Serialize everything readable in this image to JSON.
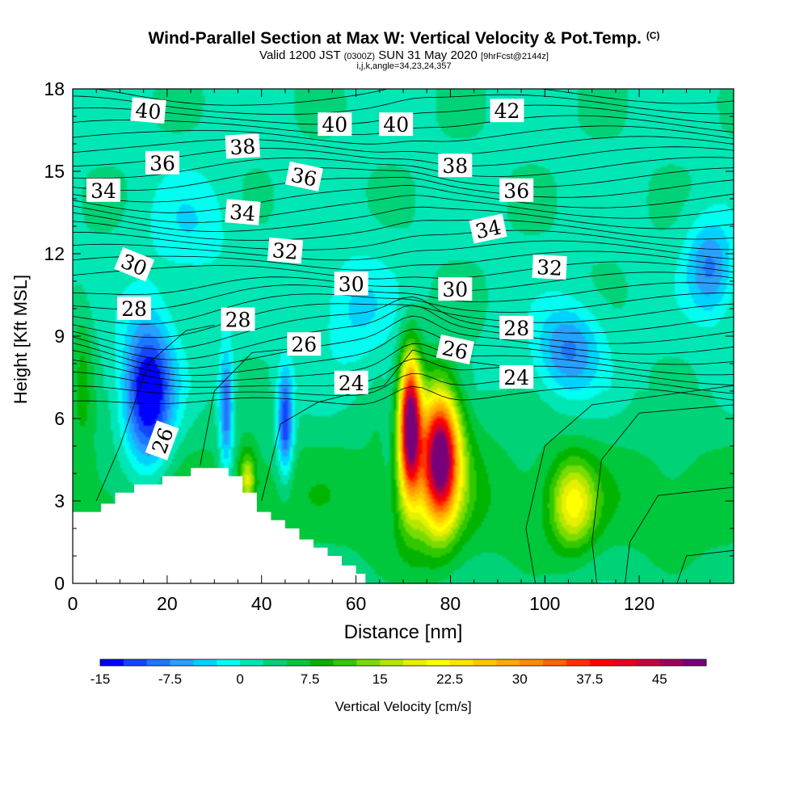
{
  "title": "Wind-Parallel Section at Max W: Vertical Velocity & Pot.Temp.",
  "copyright": "(C)",
  "subtitle_main": "Valid 1200 JST",
  "subtitle_z": "(0300Z)",
  "subtitle_date": "SUN 31 May 2020",
  "subtitle_fcst": "[9hrFcst@2144z]",
  "subtitle2": "i,j,k,angle=34,23,24,357",
  "chart_data": {
    "type": "heatmap",
    "xlabel": "Distance [nm]",
    "ylabel": "Height [Kft MSL]",
    "xlim": [
      0,
      140
    ],
    "ylim": [
      0,
      18
    ],
    "xticks": [
      "0",
      "20",
      "40",
      "60",
      "80",
      "100",
      "120"
    ],
    "yticks": [
      "0",
      "3",
      "6",
      "9",
      "12",
      "15",
      "18"
    ],
    "colorbar": {
      "label": "Vertical Velocity [cm/s]",
      "tick_labels": [
        "-15",
        "-7.5",
        "0",
        "7.5",
        "15",
        "22.5",
        "30",
        "37.5",
        "45"
      ],
      "range": [
        -15,
        47.5
      ],
      "step": 2.5,
      "colors": [
        "#0000ff",
        "#1446ff",
        "#1e78ff",
        "#28a0ff",
        "#00d2ff",
        "#00fff0",
        "#00e6b4",
        "#00d278",
        "#00c83c",
        "#00b400",
        "#32c800",
        "#78dc00",
        "#b4e600",
        "#e6f000",
        "#ffff00",
        "#ffe600",
        "#ffc800",
        "#ffaa00",
        "#ff8c00",
        "#ff6400",
        "#ff3200",
        "#ff0000",
        "#e6001e",
        "#c8003c",
        "#a0005a",
        "#780078"
      ]
    },
    "terrain": [
      [
        0,
        2.6
      ],
      [
        6,
        2.6
      ],
      [
        6,
        2.9
      ],
      [
        9,
        2.9
      ],
      [
        9,
        3.3
      ],
      [
        13,
        3.3
      ],
      [
        13,
        3.6
      ],
      [
        19,
        3.6
      ],
      [
        19,
        3.9
      ],
      [
        25,
        3.9
      ],
      [
        25,
        4.2
      ],
      [
        33,
        4.2
      ],
      [
        33,
        3.9
      ],
      [
        36,
        3.9
      ],
      [
        36,
        3.3
      ],
      [
        39,
        3.3
      ],
      [
        39,
        2.6
      ],
      [
        42,
        2.6
      ],
      [
        42,
        2.3
      ],
      [
        45,
        2.3
      ],
      [
        45,
        2.0
      ],
      [
        48,
        2.0
      ],
      [
        48,
        1.6
      ],
      [
        51,
        1.6
      ],
      [
        51,
        1.3
      ],
      [
        54,
        1.3
      ],
      [
        54,
        1.0
      ],
      [
        57,
        1.0
      ],
      [
        57,
        0.65
      ],
      [
        60,
        0.65
      ],
      [
        60,
        0.35
      ],
      [
        62,
        0.35
      ],
      [
        62,
        0
      ],
      [
        140,
        0
      ]
    ],
    "w_features": [
      {
        "x": 16,
        "z": 6.5,
        "value": -16
      },
      {
        "x": 33,
        "z": 6.5,
        "value": -9
      },
      {
        "x": 45,
        "z": 6.0,
        "value": -12
      },
      {
        "x": 71,
        "z": 6.0,
        "value": 47
      },
      {
        "x": 78,
        "z": 4.8,
        "value": 40
      },
      {
        "x": 106,
        "z": 3.0,
        "value": 17
      },
      {
        "x": 105,
        "z": 8.5,
        "value": -7
      },
      {
        "x": 134,
        "z": 11.5,
        "value": -8
      }
    ],
    "theta_contours": [
      {
        "value": 24,
        "z": 7.0
      },
      {
        "value": 26,
        "z": 8.2
      },
      {
        "value": 28,
        "z": 9.4
      },
      {
        "value": 30,
        "z": 10.6
      },
      {
        "value": 32,
        "z": 12.0
      },
      {
        "value": 34,
        "z": 13.4
      },
      {
        "value": 36,
        "z": 14.8
      },
      {
        "value": 38,
        "z": 16.0
      },
      {
        "value": 40,
        "z": 17.0
      },
      {
        "value": 42,
        "z": 17.6
      }
    ],
    "contour_labels": [
      {
        "text": "40",
        "x": 16,
        "z": 17.2,
        "rot": 5
      },
      {
        "text": "40",
        "x": 55.5,
        "z": 16.7,
        "rot": 0
      },
      {
        "text": "40",
        "x": 68.5,
        "z": 16.7,
        "rot": 0
      },
      {
        "text": "42",
        "x": 92,
        "z": 17.2,
        "rot": 0
      },
      {
        "text": "38",
        "x": 36,
        "z": 15.9,
        "rot": -3
      },
      {
        "text": "38",
        "x": 81,
        "z": 15.2,
        "rot": 0
      },
      {
        "text": "36",
        "x": 19,
        "z": 15.3,
        "rot": 0
      },
      {
        "text": "36",
        "x": 49,
        "z": 14.8,
        "rot": 12
      },
      {
        "text": "36",
        "x": 94,
        "z": 14.3,
        "rot": 0
      },
      {
        "text": "34",
        "x": 6.5,
        "z": 14.3,
        "rot": 0
      },
      {
        "text": "34",
        "x": 36,
        "z": 13.5,
        "rot": 5
      },
      {
        "text": "34",
        "x": 88,
        "z": 12.9,
        "rot": -12
      },
      {
        "text": "32",
        "x": 45,
        "z": 12.1,
        "rot": 5
      },
      {
        "text": "32",
        "x": 101,
        "z": 11.5,
        "rot": 3
      },
      {
        "text": "30",
        "x": 13,
        "z": 11.6,
        "rot": 22
      },
      {
        "text": "30",
        "x": 59,
        "z": 10.9,
        "rot": 0
      },
      {
        "text": "30",
        "x": 81,
        "z": 10.7,
        "rot": 0
      },
      {
        "text": "28",
        "x": 13,
        "z": 10.0,
        "rot": 0
      },
      {
        "text": "28",
        "x": 35,
        "z": 9.6,
        "rot": 0
      },
      {
        "text": "28",
        "x": 94,
        "z": 9.3,
        "rot": 0
      },
      {
        "text": "26",
        "x": 49,
        "z": 8.7,
        "rot": 0
      },
      {
        "text": "26",
        "x": 81,
        "z": 8.5,
        "rot": 12
      },
      {
        "text": "26",
        "x": 19,
        "z": 5.2,
        "rot": -70
      },
      {
        "text": "24",
        "x": 59,
        "z": 7.3,
        "rot": 0
      },
      {
        "text": "24",
        "x": 94,
        "z": 7.5,
        "rot": 0
      }
    ]
  }
}
